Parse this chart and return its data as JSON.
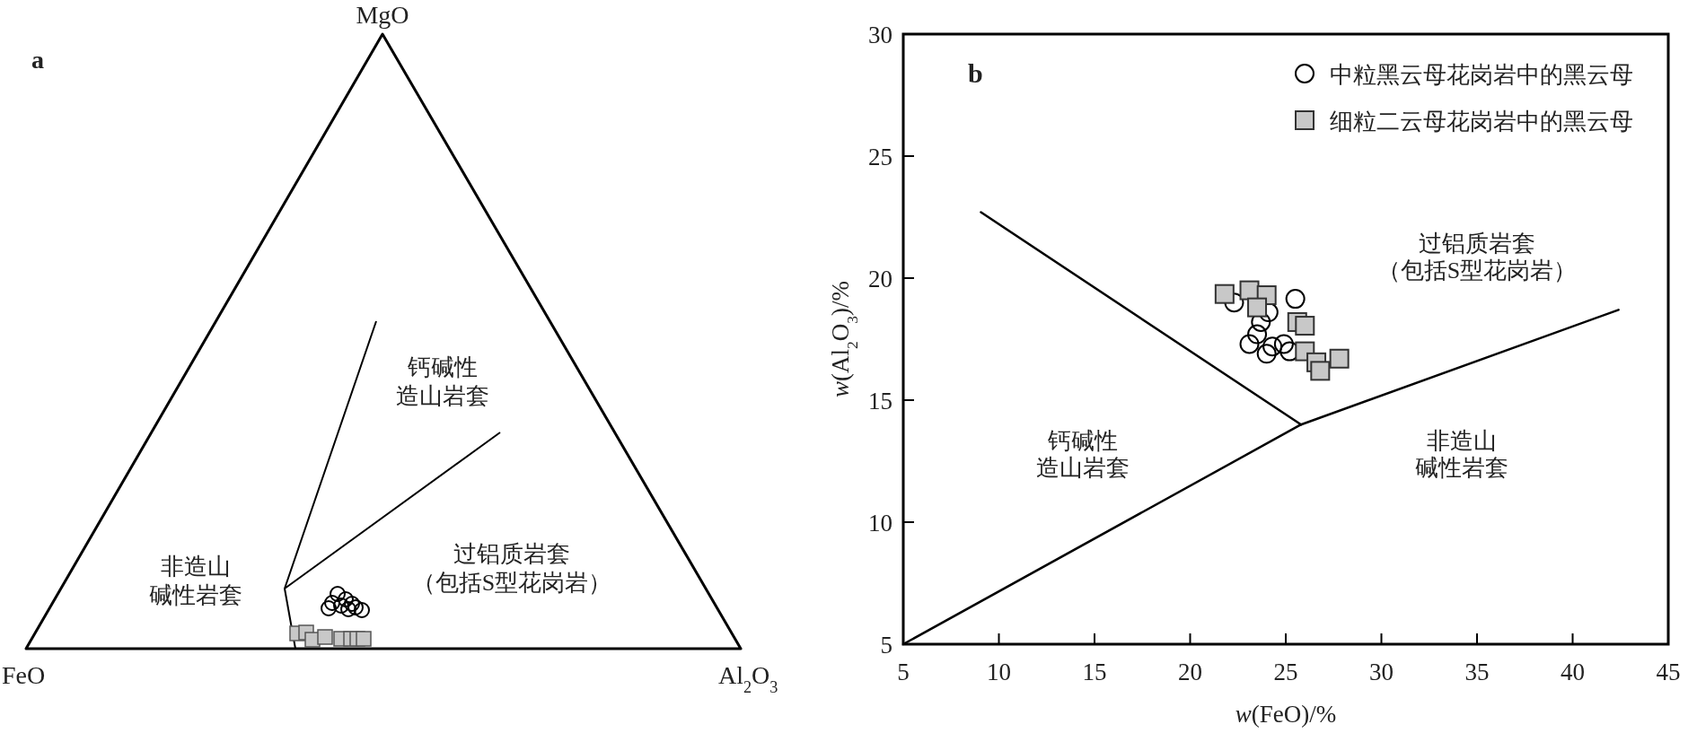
{
  "chart_data": [
    {
      "type": "other",
      "title": "a",
      "annotations": [
        "MgO",
        "FeO",
        "Al$_{2}$O$_{3}$",
        "钙碱性",
        "造山岩套",
        "非造山",
        "碱性岩套",
        "过铝质岩套",
        "（包括S型花岗岩）"
      ]
    },
    {
      "type": "scatter",
      "title": "b",
      "xlabel": "*w*(FeO)/%",
      "ylabel": "*w*(Al$_{2}$O$_{3}$)/%",
      "xlim": [
        5,
        45
      ],
      "ylim": [
        5,
        30
      ],
      "xticks": [
        5,
        10,
        15,
        20,
        25,
        30,
        35,
        40,
        45
      ],
      "yticks": [
        5,
        10,
        15,
        20,
        25,
        30
      ],
      "legend": "top right",
      "grid": false,
      "annotations": [
        "过铝质岩套",
        "（包括S型花岗岩）",
        "钙碱性",
        "造山岩套",
        "非造山",
        "碱性岩套"
      ],
      "series": [
        {
          "name": "中粒黑云母花岗岩中的黑云母",
          "marker": "circle",
          "color": "#000000",
          "x": [
            22.3,
            25.5,
            24.1,
            23.7,
            23.5,
            23.1,
            24.0,
            24.3,
            24.9,
            25.2
          ],
          "values": [
            19.0,
            19.15,
            18.6,
            18.2,
            17.7,
            17.3,
            16.9,
            17.2,
            17.3,
            17.0
          ]
        },
        {
          "name": "细粒二云母花岗岩中的黑云母",
          "marker": "square",
          "color": "#c8c8c8",
          "x": [
            21.8,
            23.1,
            24.0,
            23.5,
            25.6,
            26.0,
            26.0,
            26.6,
            26.8,
            27.8
          ],
          "values": [
            19.35,
            19.5,
            19.3,
            18.8,
            18.2,
            18.05,
            17.0,
            16.55,
            16.2,
            16.7
          ]
        },
        {
          "type": "line",
          "color": "#000000",
          "x": [
            9.06,
            25.8
          ],
          "values": [
            22.7,
            14.0
          ]
        },
        {
          "type": "line",
          "color": "#000000",
          "x": [
            5,
            25.8,
            42.4
          ],
          "values": [
            5,
            14.0,
            18.7
          ]
        }
      ]
    }
  ]
}
